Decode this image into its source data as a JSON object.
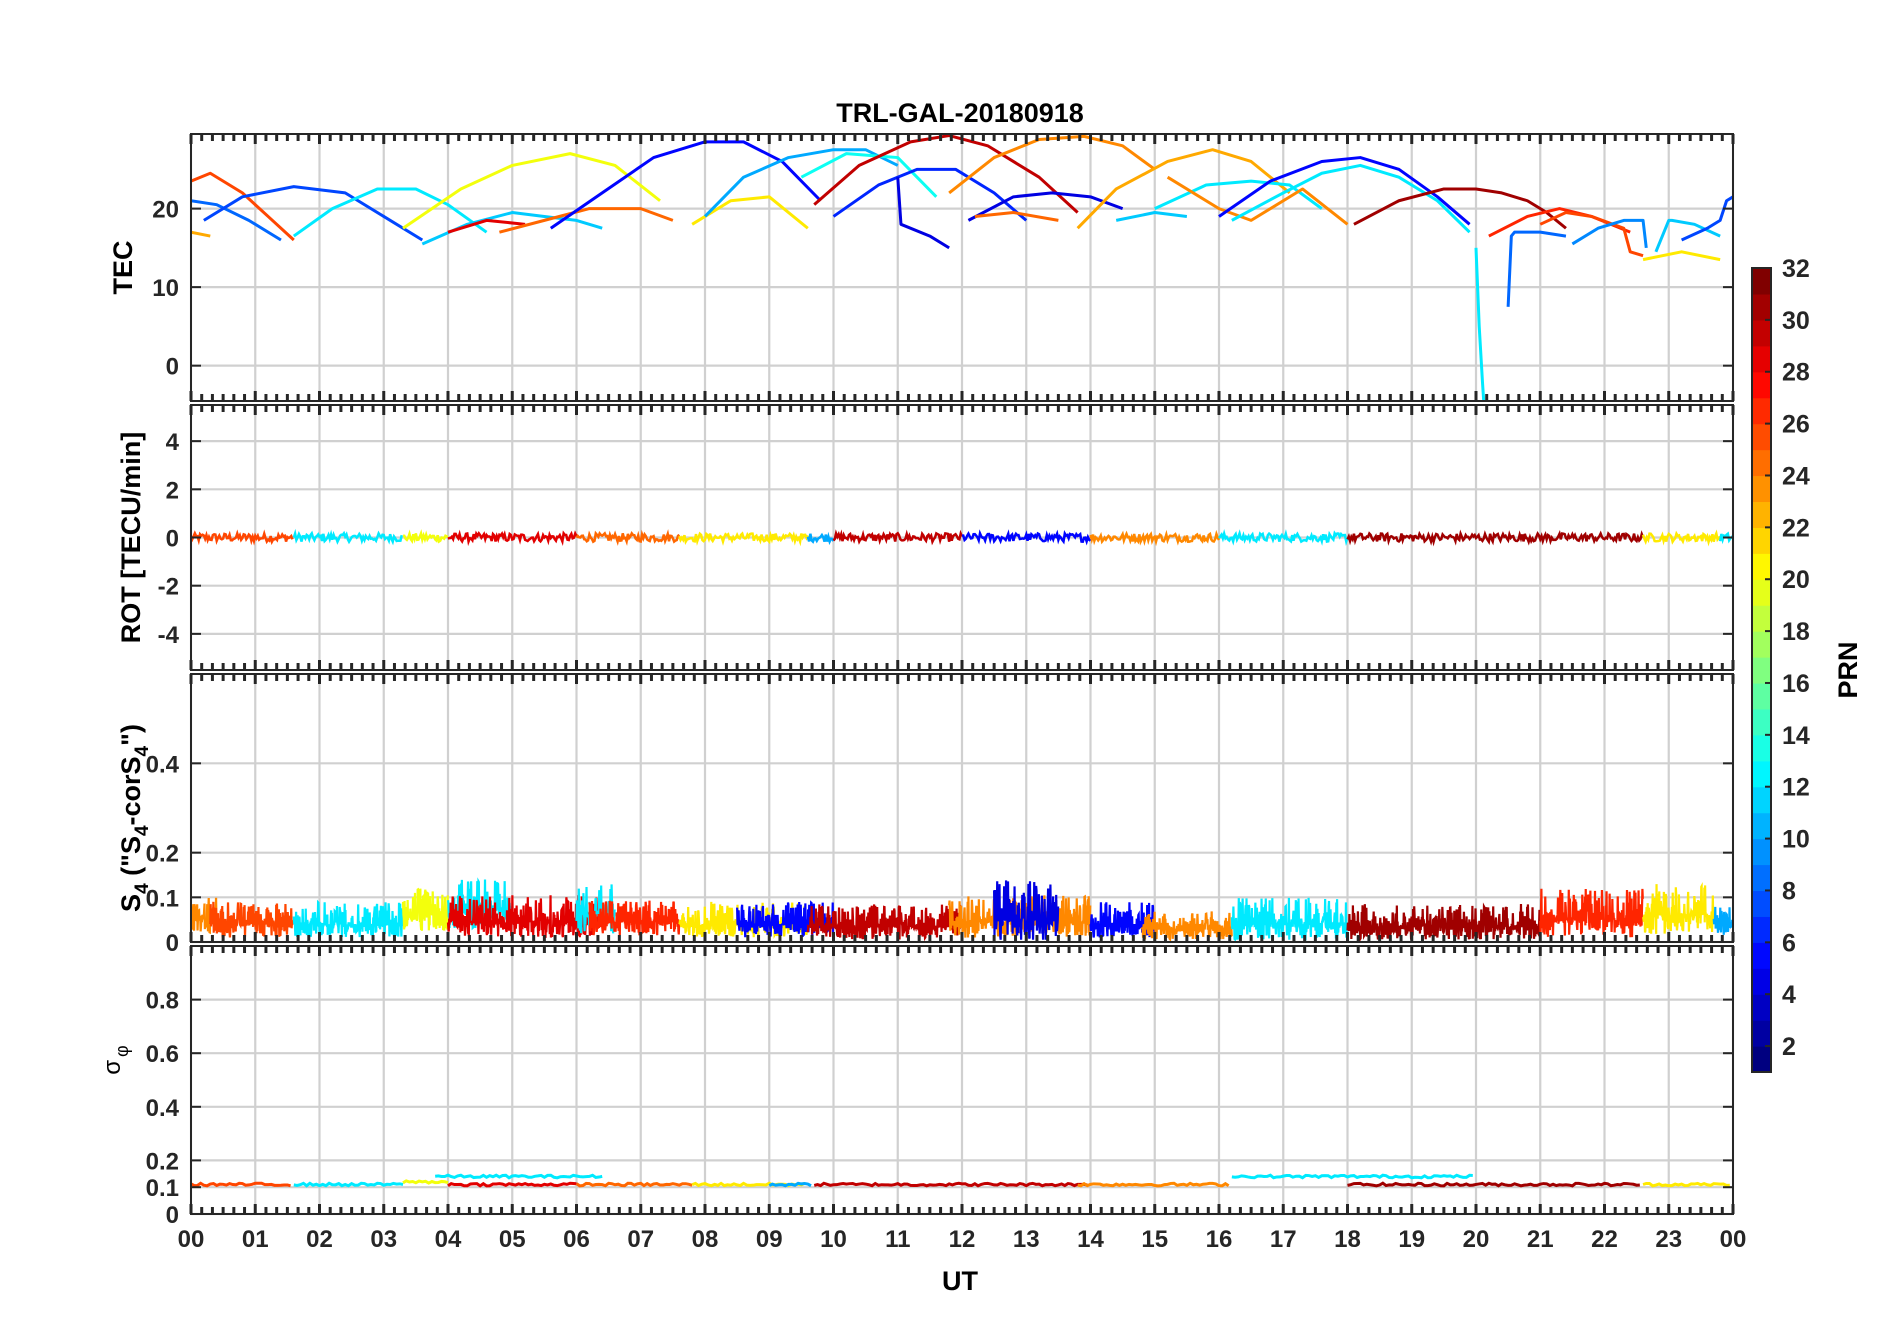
{
  "chart_data": {
    "type": "line",
    "title": "TRL-GAL-20180918",
    "xlabel": "UT",
    "xlim": [
      0,
      24
    ],
    "x_ticks": [
      "00",
      "01",
      "02",
      "03",
      "04",
      "05",
      "06",
      "07",
      "08",
      "09",
      "10",
      "11",
      "12",
      "13",
      "14",
      "15",
      "16",
      "17",
      "18",
      "19",
      "20",
      "21",
      "22",
      "23",
      "00"
    ],
    "panels": [
      {
        "id": "tec",
        "ylabel": "TEC",
        "ylim": [
          -4.5,
          29.5
        ],
        "yticks": [
          0,
          10,
          20
        ]
      },
      {
        "id": "rot",
        "ylabel": "ROT [TECU/min]",
        "ylim": [
          -5.5,
          5.5
        ],
        "yticks": [
          -4,
          -2,
          0,
          2,
          4
        ]
      },
      {
        "id": "s4",
        "ylabel_main": "S",
        "ylabel_sub": "4",
        "ylabel_rest": " (\"S",
        "ylabel_sub2": "4",
        "ylabel_rest2": "-corS",
        "ylabel_sub3": "4",
        "ylabel_end": "\")",
        "ylim": [
          0,
          0.6
        ],
        "yticks": [
          0,
          0.1,
          0.2,
          0.4
        ]
      },
      {
        "id": "sigma",
        "ylabel_main": "σ",
        "ylabel_sub": "φ",
        "ylim": [
          0,
          1
        ],
        "yticks": [
          0,
          0.1,
          0.2,
          0.4,
          0.6,
          0.8
        ]
      }
    ],
    "colorbar": {
      "label": "PRN",
      "range": [
        1,
        32
      ],
      "ticks": [
        2,
        4,
        6,
        8,
        10,
        12,
        14,
        16,
        18,
        20,
        22,
        24,
        26,
        28,
        30,
        32
      ]
    },
    "tec_series": [
      {
        "prn": 26,
        "x": [
          0.0,
          0.3,
          0.8,
          1.2,
          1.6
        ],
        "y": [
          23.5,
          24.5,
          22.0,
          19.0,
          16.0
        ]
      },
      {
        "prn": 8,
        "x": [
          0.0,
          0.4,
          0.9,
          1.4
        ],
        "y": [
          21.0,
          20.5,
          18.5,
          16.0
        ]
      },
      {
        "prn": 23,
        "x": [
          0.0,
          0.3
        ],
        "y": [
          17.0,
          16.5
        ]
      },
      {
        "prn": 7,
        "x": [
          0.2,
          0.8,
          1.6,
          2.4,
          3.0,
          3.6
        ],
        "y": [
          18.5,
          21.5,
          22.8,
          22.0,
          19.0,
          16.0
        ]
      },
      {
        "prn": 12,
        "x": [
          1.6,
          2.2,
          2.9,
          3.5,
          4.0,
          4.6
        ],
        "y": [
          16.5,
          20.0,
          22.5,
          22.5,
          20.5,
          17.0
        ]
      },
      {
        "prn": 20,
        "x": [
          3.3,
          4.2,
          5.0,
          5.9,
          6.6,
          7.3
        ],
        "y": [
          17.5,
          22.5,
          25.5,
          27.0,
          25.5,
          21.0
        ]
      },
      {
        "prn": 11,
        "x": [
          3.6,
          4.3,
          5.0,
          5.5,
          6.0,
          6.4
        ],
        "y": [
          15.5,
          18.0,
          19.5,
          19.0,
          18.5,
          17.5
        ]
      },
      {
        "prn": 29,
        "x": [
          4.0,
          4.6,
          5.2
        ],
        "y": [
          17.0,
          18.5,
          18.0
        ]
      },
      {
        "prn": 25,
        "x": [
          4.8,
          5.5,
          6.2,
          7.0,
          7.5
        ],
        "y": [
          17.0,
          18.5,
          20.0,
          20.0,
          18.5
        ]
      },
      {
        "prn": 5,
        "x": [
          5.6,
          6.4,
          7.2,
          8.0,
          8.6,
          9.2,
          9.8
        ],
        "y": [
          17.5,
          22.0,
          26.5,
          28.5,
          28.5,
          26.0,
          21.0
        ]
      },
      {
        "prn": 21,
        "x": [
          7.8,
          8.4,
          9.0,
          9.6
        ],
        "y": [
          18.0,
          21.0,
          21.5,
          17.5
        ]
      },
      {
        "prn": 10,
        "x": [
          8.0,
          8.6,
          9.3,
          10.0,
          10.5,
          11.0
        ],
        "y": [
          19.0,
          24.0,
          26.5,
          27.5,
          27.5,
          25.5
        ]
      },
      {
        "prn": 13,
        "x": [
          9.5,
          10.2,
          11.0,
          11.6
        ],
        "y": [
          24.0,
          27.0,
          26.5,
          21.5
        ]
      },
      {
        "prn": 30,
        "x": [
          9.7,
          10.4,
          11.2,
          11.8,
          12.4,
          13.2,
          13.8
        ],
        "y": [
          20.5,
          25.5,
          28.5,
          29.3,
          28.0,
          24.0,
          19.5
        ]
      },
      {
        "prn": 6,
        "x": [
          10.0,
          10.7,
          11.3,
          11.9,
          12.5,
          13.0
        ],
        "y": [
          19.0,
          23.0,
          25.0,
          25.0,
          22.0,
          18.5
        ]
      },
      {
        "prn": 4,
        "x": [
          11.0,
          11.05,
          11.5,
          11.8
        ],
        "y": [
          24.0,
          18.0,
          16.5,
          15.0
        ]
      },
      {
        "prn": 24,
        "x": [
          11.8,
          12.5,
          13.2,
          13.9,
          14.5,
          15.0
        ],
        "y": [
          22.0,
          26.5,
          28.8,
          29.2,
          28.0,
          25.0
        ]
      },
      {
        "prn": 4,
        "x": [
          12.1,
          12.8,
          13.4,
          14.0,
          14.5
        ],
        "y": [
          18.5,
          21.5,
          22.0,
          21.5,
          20.0
        ]
      },
      {
        "prn": 25,
        "x": [
          12.2,
          12.8,
          13.5
        ],
        "y": [
          19.0,
          19.5,
          18.5
        ]
      },
      {
        "prn": 23,
        "x": [
          13.8,
          14.4,
          15.2,
          15.9,
          16.5,
          17.1
        ],
        "y": [
          17.5,
          22.5,
          26.0,
          27.5,
          26.0,
          22.0
        ]
      },
      {
        "prn": 11,
        "x": [
          14.4,
          15.0,
          15.5
        ],
        "y": [
          18.5,
          19.5,
          19.0
        ]
      },
      {
        "prn": 12,
        "x": [
          15.0,
          15.8,
          16.5,
          17.1,
          17.6
        ],
        "y": [
          20.0,
          23.0,
          23.5,
          23.0,
          20.0
        ]
      },
      {
        "prn": 24,
        "x": [
          15.2,
          16.0,
          16.5,
          17.3,
          18.0
        ],
        "y": [
          24.0,
          20.0,
          18.5,
          22.5,
          18.0
        ]
      },
      {
        "prn": 5,
        "x": [
          16.0,
          16.8,
          17.6,
          18.2,
          18.8,
          19.4,
          19.9
        ],
        "y": [
          19.0,
          23.5,
          26.0,
          26.5,
          25.0,
          21.5,
          18.0
        ]
      },
      {
        "prn": 12,
        "x": [
          16.2,
          17.0,
          17.6,
          18.2,
          18.8,
          19.4,
          19.9
        ],
        "y": [
          18.5,
          22.0,
          24.5,
          25.5,
          24.0,
          21.0,
          17.0
        ]
      },
      {
        "prn": 31,
        "x": [
          18.1,
          18.8,
          19.5,
          20.0,
          20.4,
          20.8,
          21.1,
          21.4
        ],
        "y": [
          18.0,
          21.0,
          22.5,
          22.5,
          22.0,
          21.0,
          19.5,
          17.5
        ]
      },
      {
        "prn": 12,
        "x": [
          20.0,
          20.05,
          20.1,
          20.12
        ],
        "y": [
          15.0,
          5.0,
          -2.0,
          -4.5
        ]
      },
      {
        "prn": 8,
        "x": [
          20.5,
          20.55,
          20.6,
          21.0,
          21.4
        ],
        "y": [
          7.5,
          16.5,
          17.0,
          17.0,
          16.5
        ]
      },
      {
        "prn": 27,
        "x": [
          20.2,
          20.8,
          21.3,
          21.8,
          22.4
        ],
        "y": [
          16.5,
          19.0,
          20.0,
          19.0,
          17.0
        ]
      },
      {
        "prn": 26,
        "x": [
          21.0,
          21.4,
          21.8,
          22.3,
          22.4,
          22.6
        ],
        "y": [
          18.0,
          19.5,
          19.0,
          17.5,
          14.5,
          14.0
        ]
      },
      {
        "prn": 9,
        "x": [
          21.5,
          21.9,
          22.3,
          22.6,
          22.65
        ],
        "y": [
          15.5,
          17.5,
          18.5,
          18.5,
          15.0
        ]
      },
      {
        "prn": 21,
        "x": [
          22.6,
          23.2,
          23.8
        ],
        "y": [
          13.5,
          14.5,
          13.5
        ]
      },
      {
        "prn": 11,
        "x": [
          22.8,
          23.0,
          23.05,
          23.4,
          23.8
        ],
        "y": [
          14.5,
          18.5,
          18.5,
          18.0,
          16.5
        ]
      },
      {
        "prn": 7,
        "x": [
          23.2,
          23.6,
          23.8,
          23.9,
          24.0
        ],
        "y": [
          16.0,
          17.5,
          18.5,
          21.0,
          21.5
        ]
      }
    ],
    "sigma_series": [
      {
        "prn": 26,
        "x": [
          0,
          1.6
        ],
        "y": [
          0.11,
          0.11
        ]
      },
      {
        "prn": 12,
        "x": [
          1.6,
          3.3
        ],
        "y": [
          0.11,
          0.11
        ]
      },
      {
        "prn": 20,
        "x": [
          3.3,
          4.0
        ],
        "y": [
          0.12,
          0.12
        ]
      },
      {
        "prn": 12,
        "x": [
          3.8,
          6.4
        ],
        "y": [
          0.14,
          0.14
        ]
      },
      {
        "prn": 29,
        "x": [
          4.0,
          6.0
        ],
        "y": [
          0.11,
          0.11
        ]
      },
      {
        "prn": 25,
        "x": [
          6.0,
          7.8
        ],
        "y": [
          0.11,
          0.11
        ]
      },
      {
        "prn": 21,
        "x": [
          7.8,
          9.6
        ],
        "y": [
          0.11,
          0.11
        ]
      },
      {
        "prn": 10,
        "x": [
          9.0,
          9.7
        ],
        "y": [
          0.11,
          0.11
        ]
      },
      {
        "prn": 30,
        "x": [
          9.7,
          14.0
        ],
        "y": [
          0.11,
          0.11
        ]
      },
      {
        "prn": 24,
        "x": [
          13.8,
          16.2
        ],
        "y": [
          0.11,
          0.11
        ]
      },
      {
        "prn": 12,
        "x": [
          16.2,
          20.0
        ],
        "y": [
          0.14,
          0.14
        ]
      },
      {
        "prn": 31,
        "x": [
          18.0,
          22.6
        ],
        "y": [
          0.11,
          0.11
        ]
      },
      {
        "prn": 21,
        "x": [
          22.6,
          24.0
        ],
        "y": [
          0.11,
          0.11
        ]
      }
    ],
    "rot_segments": [
      {
        "prn": 26,
        "x": [
          0,
          1.6
        ]
      },
      {
        "prn": 12,
        "x": [
          1.6,
          3.3
        ]
      },
      {
        "prn": 20,
        "x": [
          3.3,
          4.0
        ]
      },
      {
        "prn": 29,
        "x": [
          4.0,
          6.0
        ]
      },
      {
        "prn": 25,
        "x": [
          6.0,
          7.6
        ]
      },
      {
        "prn": 21,
        "x": [
          7.6,
          9.6
        ]
      },
      {
        "prn": 10,
        "x": [
          9.6,
          10.0
        ]
      },
      {
        "prn": 30,
        "x": [
          10.0,
          12.0
        ]
      },
      {
        "prn": 5,
        "x": [
          12.0,
          14.0
        ]
      },
      {
        "prn": 24,
        "x": [
          14.0,
          16.0
        ]
      },
      {
        "prn": 12,
        "x": [
          16.0,
          18.0
        ]
      },
      {
        "prn": 31,
        "x": [
          18.0,
          22.6
        ]
      },
      {
        "prn": 21,
        "x": [
          22.6,
          23.8
        ]
      },
      {
        "prn": 12,
        "x": [
          23.8,
          24.0
        ]
      }
    ],
    "s4_segments": [
      {
        "prn": 24,
        "x": [
          0,
          0.4
        ],
        "base": 0.05,
        "amp": 0.05
      },
      {
        "prn": 26,
        "x": [
          0.3,
          1.6
        ],
        "base": 0.04,
        "amp": 0.05
      },
      {
        "prn": 12,
        "x": [
          1.6,
          3.3
        ],
        "base": 0.04,
        "amp": 0.05
      },
      {
        "prn": 20,
        "x": [
          3.3,
          4.0
        ],
        "base": 0.06,
        "amp": 0.06
      },
      {
        "prn": 12,
        "x": [
          4.0,
          5.0
        ],
        "base": 0.07,
        "amp": 0.07
      },
      {
        "prn": 29,
        "x": [
          4.0,
          6.4
        ],
        "base": 0.045,
        "amp": 0.06
      },
      {
        "prn": 12,
        "x": [
          6.0,
          6.6
        ],
        "base": 0.06,
        "amp": 0.07
      },
      {
        "prn": 27,
        "x": [
          6.2,
          7.6
        ],
        "base": 0.045,
        "amp": 0.05
      },
      {
        "prn": 21,
        "x": [
          7.6,
          9.6
        ],
        "base": 0.04,
        "amp": 0.05
      },
      {
        "prn": 5,
        "x": [
          8.5,
          10.0
        ],
        "base": 0.04,
        "amp": 0.05
      },
      {
        "prn": 30,
        "x": [
          9.6,
          12.0
        ],
        "base": 0.035,
        "amp": 0.05
      },
      {
        "prn": 24,
        "x": [
          11.8,
          14.0
        ],
        "base": 0.045,
        "amp": 0.06
      },
      {
        "prn": 4,
        "x": [
          12.5,
          13.5
        ],
        "base": 0.05,
        "amp": 0.09
      },
      {
        "prn": 5,
        "x": [
          14.0,
          15.0
        ],
        "base": 0.04,
        "amp": 0.05
      },
      {
        "prn": 24,
        "x": [
          14.8,
          16.2
        ],
        "base": 0.03,
        "amp": 0.04
      },
      {
        "prn": 12,
        "x": [
          16.2,
          18.0
        ],
        "base": 0.04,
        "amp": 0.06
      },
      {
        "prn": 31,
        "x": [
          18.0,
          21.0
        ],
        "base": 0.035,
        "amp": 0.05
      },
      {
        "prn": 27,
        "x": [
          21.0,
          22.6
        ],
        "base": 0.05,
        "amp": 0.07
      },
      {
        "prn": 21,
        "x": [
          22.6,
          23.7
        ],
        "base": 0.06,
        "amp": 0.07
      },
      {
        "prn": 10,
        "x": [
          23.7,
          24.0
        ],
        "base": 0.04,
        "amp": 0.04
      }
    ]
  }
}
